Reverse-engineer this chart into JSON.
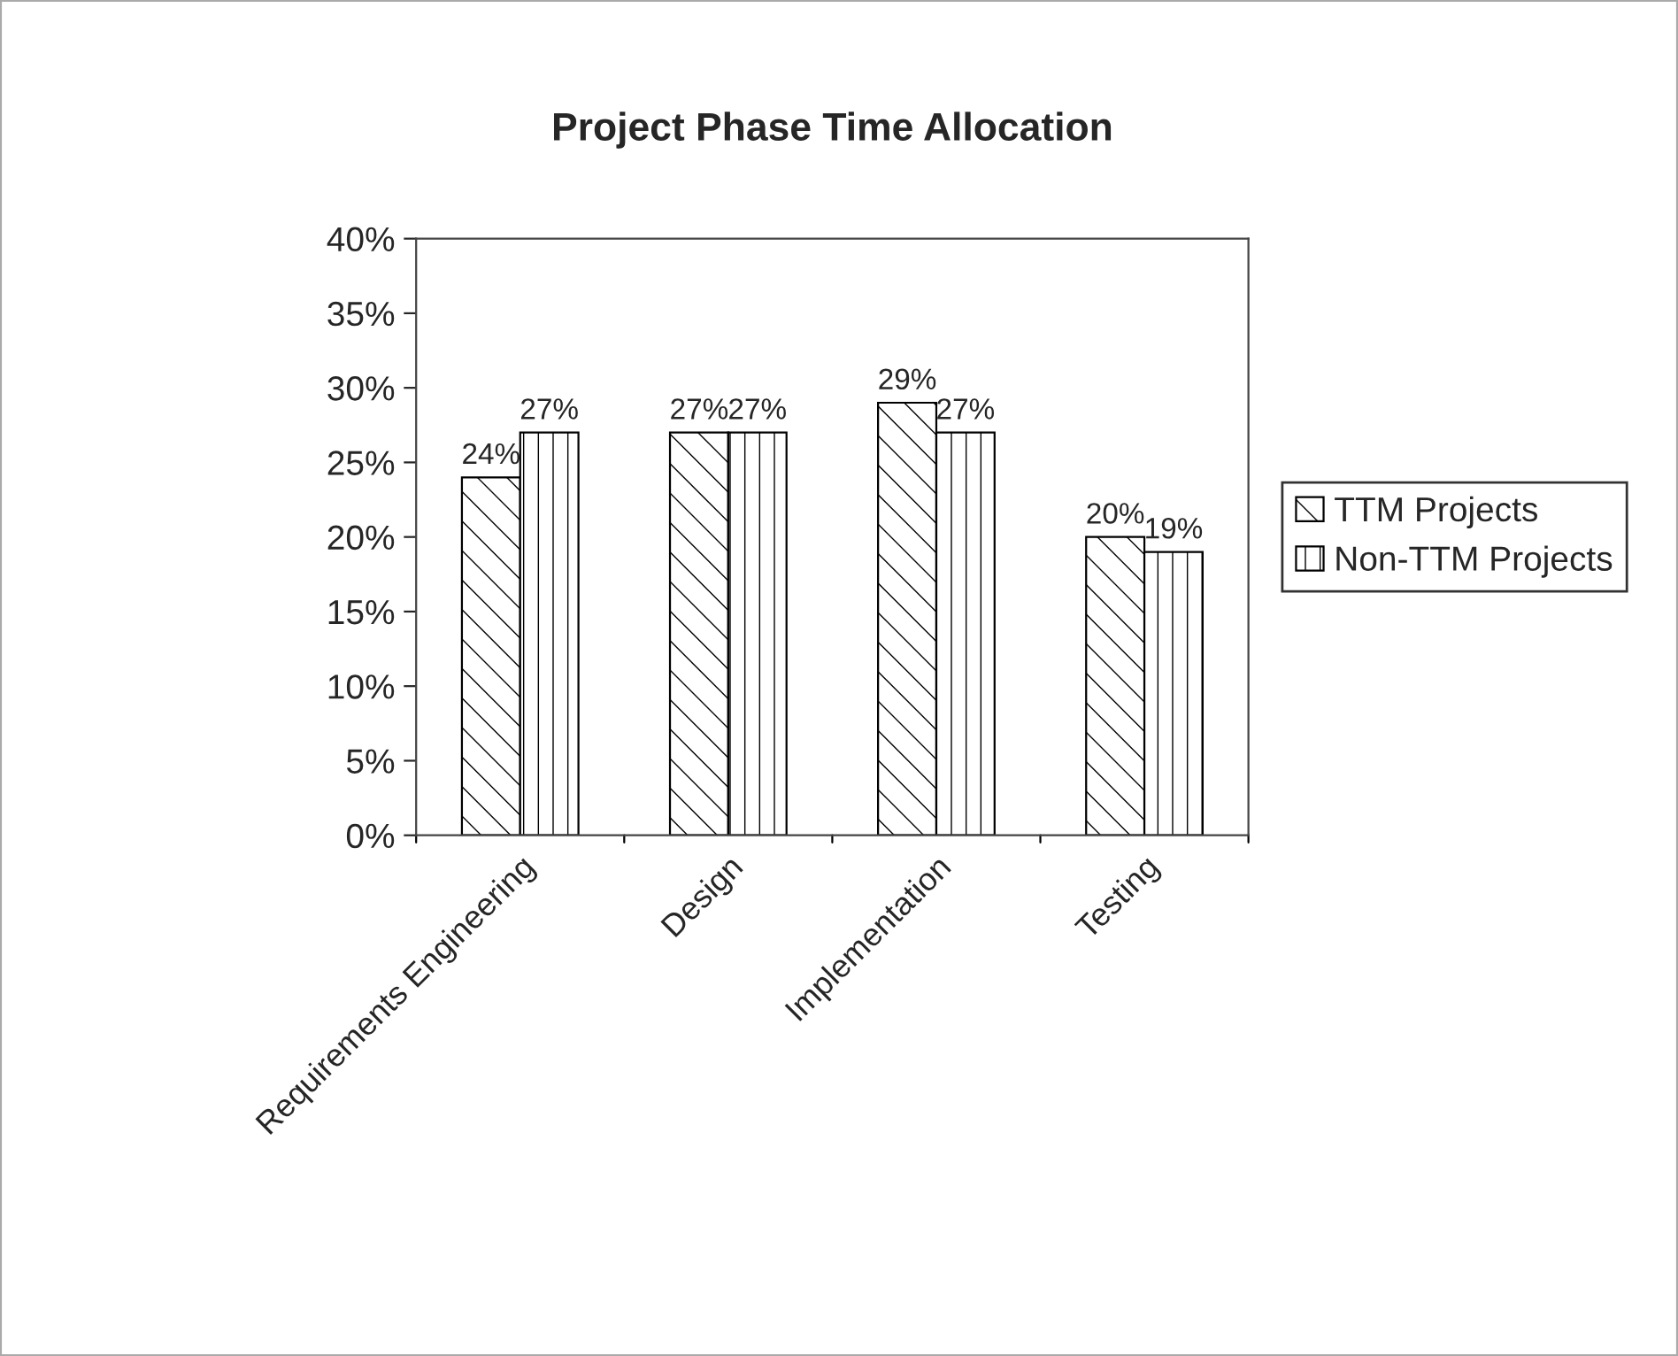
{
  "chart_data": {
    "type": "bar",
    "title": "Project Phase Time Allocation",
    "categories": [
      "Requirements Engineering",
      "Design",
      "Implementation",
      "Testing"
    ],
    "series": [
      {
        "name": "TTM Projects",
        "color": "#000000",
        "values": [
          24,
          27,
          29,
          20
        ],
        "value_labels": [
          "24%",
          "27%",
          "29%",
          "20%"
        ]
      },
      {
        "name": "Non-TTM Projects",
        "color": "#000000",
        "values": [
          27,
          27,
          27,
          19
        ],
        "value_labels": [
          "27%",
          "27%",
          "27%",
          "19%"
        ]
      }
    ],
    "ylim": [
      0,
      40
    ],
    "yticks": [
      {
        "value": 0,
        "label": "0%"
      },
      {
        "value": 5,
        "label": "5%"
      },
      {
        "value": 10,
        "label": "10%"
      },
      {
        "value": 15,
        "label": "15%"
      },
      {
        "value": 20,
        "label": "20%"
      },
      {
        "value": 25,
        "label": "25%"
      },
      {
        "value": 30,
        "label": "30%"
      },
      {
        "value": 35,
        "label": "35%"
      },
      {
        "value": 40,
        "label": "40%"
      }
    ],
    "grid": false,
    "legend": "right"
  }
}
